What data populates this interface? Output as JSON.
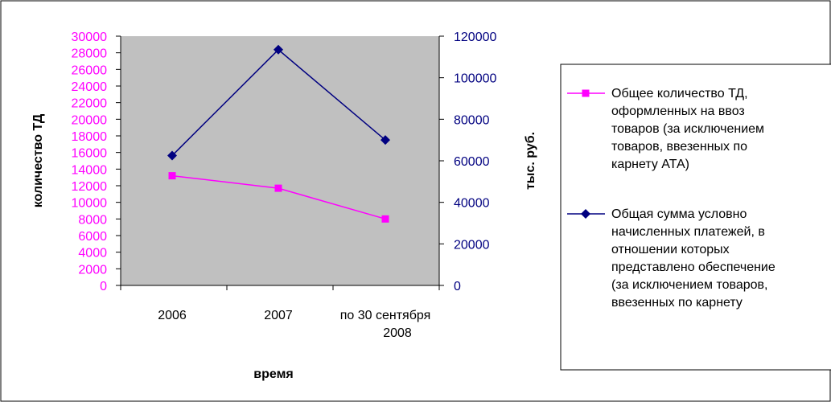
{
  "colors": {
    "left_axis": "#ff00ff",
    "right_axis": "#000080",
    "plot_bg": "#c0c0c0"
  },
  "chart_data": {
    "type": "line",
    "categories": [
      "2006",
      "2007",
      "по 30 сентября 2008"
    ],
    "x_tick_lines": [
      [
        "2006"
      ],
      [
        "2007"
      ],
      [
        "по 30 сентября",
        "2008"
      ]
    ],
    "xlabel": "время",
    "ylabel_left": "количество ТД",
    "ylabel_right": "тыс. руб.",
    "ylim_left": [
      0,
      30000
    ],
    "yticks_left": [
      0,
      2000,
      4000,
      6000,
      8000,
      10000,
      12000,
      14000,
      16000,
      18000,
      20000,
      22000,
      24000,
      26000,
      28000,
      30000
    ],
    "ylim_right": [
      0,
      120000
    ],
    "yticks_right": [
      0,
      20000,
      40000,
      60000,
      80000,
      100000,
      120000
    ],
    "grid": false,
    "legend_position": "right",
    "series": [
      {
        "name": "Общее количество ТД, оформленных на ввоз товаров (за исключением товаров, ввезенных по карнету АТА)",
        "name_lines": [
          "Общее количество ТД,",
          "оформленных на ввоз",
          "товаров (за исключением",
          "товаров, ввезенных по",
          "карнету АТА)"
        ],
        "axis": "left",
        "color": "#ff00ff",
        "marker": "square",
        "values": [
          13200,
          11700,
          8000
        ]
      },
      {
        "name": "Общая сумма условно начисленных платежей, в отношении которых представлено обеспечение (за исключением товаров, ввезенных по карнету",
        "name_lines": [
          "Общая сумма условно",
          "начисленных платежей, в",
          "отношении которых",
          "представлено обеспечение",
          "(за исключением товаров,",
          "ввезенных по карнету"
        ],
        "axis": "right",
        "color": "#000080",
        "marker": "diamond",
        "values": [
          62500,
          113500,
          70000
        ]
      }
    ]
  }
}
